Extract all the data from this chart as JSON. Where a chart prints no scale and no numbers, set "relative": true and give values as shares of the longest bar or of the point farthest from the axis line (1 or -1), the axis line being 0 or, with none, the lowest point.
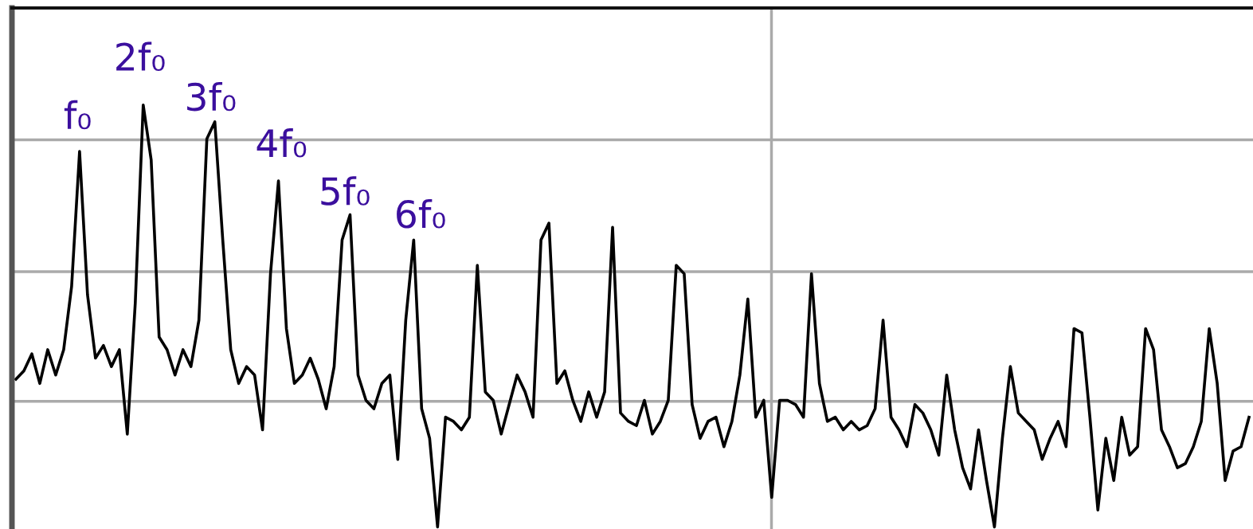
{
  "chart_data": {
    "type": "line",
    "relative": true,
    "grid": true,
    "categories": [
      null,
      null,
      null,
      null,
      null,
      null,
      null,
      null,
      null,
      null,
      null,
      null,
      null,
      null,
      null,
      null,
      null,
      null,
      null,
      null,
      null,
      null,
      null,
      null,
      null,
      null,
      null,
      null,
      null,
      null,
      null,
      null,
      null,
      null,
      null,
      null,
      null,
      null,
      null,
      null,
      null,
      null,
      null,
      null,
      null,
      null,
      null,
      null,
      null,
      null,
      null,
      null,
      null,
      null,
      null,
      null,
      null,
      null,
      null,
      null,
      null,
      null,
      null,
      null,
      null,
      null,
      null,
      null,
      null,
      null,
      null,
      null,
      null,
      null,
      null,
      null,
      null,
      null,
      null,
      null,
      null,
      null,
      null,
      null,
      null,
      null,
      null,
      null,
      null,
      null,
      null,
      null,
      null,
      null,
      null,
      null,
      null,
      null,
      null,
      null,
      null,
      null,
      null,
      null,
      null,
      null,
      null,
      null,
      null,
      null,
      null,
      null,
      null,
      null,
      null,
      null,
      null,
      null,
      null,
      null,
      null,
      null,
      null,
      null,
      null,
      null,
      null,
      null,
      null,
      null,
      null,
      null,
      null,
      null,
      null,
      null,
      null,
      null,
      null,
      null,
      null,
      null,
      null,
      null,
      null,
      null,
      null,
      null,
      null,
      null,
      null,
      null,
      null,
      null,
      null,
      null
    ],
    "series": [
      {
        "color": "#000000",
        "values": [
          0.35,
          0.37,
          0.41,
          0.34,
          0.42,
          0.36,
          0.42,
          0.57,
          0.89,
          0.55,
          0.4,
          0.43,
          0.38,
          0.42,
          0.22,
          0.53,
          1,
          0.87,
          0.45,
          0.42,
          0.36,
          0.42,
          0.38,
          0.49,
          0.92,
          0.96,
          0.68,
          0.42,
          0.34,
          0.38,
          0.36,
          0.23,
          0.6,
          0.82,
          0.47,
          0.34,
          0.36,
          0.4,
          0.35,
          0.28,
          0.38,
          0.68,
          0.74,
          0.36,
          0.3,
          0.28,
          0.34,
          0.36,
          0.16,
          0.49,
          0.68,
          0.28,
          0.21,
          0,
          0.26,
          0.25,
          0.23,
          0.26,
          0.62,
          0.32,
          0.3,
          0.22,
          0.29,
          0.36,
          0.32,
          0.26,
          0.68,
          0.72,
          0.34,
          0.37,
          0.3,
          0.25,
          0.32,
          0.26,
          0.32,
          0.71,
          0.27,
          0.25,
          0.24,
          0.3,
          0.22,
          0.25,
          0.3,
          0.62,
          0.6,
          0.29,
          0.21,
          0.25,
          0.26,
          0.19,
          0.25,
          0.36,
          0.54,
          0.26,
          0.3,
          0.07,
          0.3,
          0.3,
          0.29,
          0.26,
          0.6,
          0.34,
          0.25,
          0.26,
          0.23,
          0.25,
          0.23,
          0.24,
          0.28,
          0.49,
          0.26,
          0.23,
          0.19,
          0.29,
          0.27,
          0.23,
          0.17,
          0.36,
          0.23,
          0.14,
          0.09,
          0.23,
          0.11,
          0,
          0.21,
          0.38,
          0.27,
          0.25,
          0.23,
          0.16,
          0.21,
          0.25,
          0.19,
          0.47,
          0.46,
          0.26,
          0.04,
          0.21,
          0.11,
          0.26,
          0.17,
          0.19,
          0.47,
          0.42,
          0.23,
          0.19,
          0.14,
          0.15,
          0.19,
          0.25,
          0.47,
          0.34,
          0.11,
          0.18,
          0.19,
          0.26
        ]
      }
    ],
    "annotations": [
      "f₀",
      "2f₀",
      "3f₀",
      "4f₀",
      "5f₀",
      "6f₀"
    ]
  }
}
